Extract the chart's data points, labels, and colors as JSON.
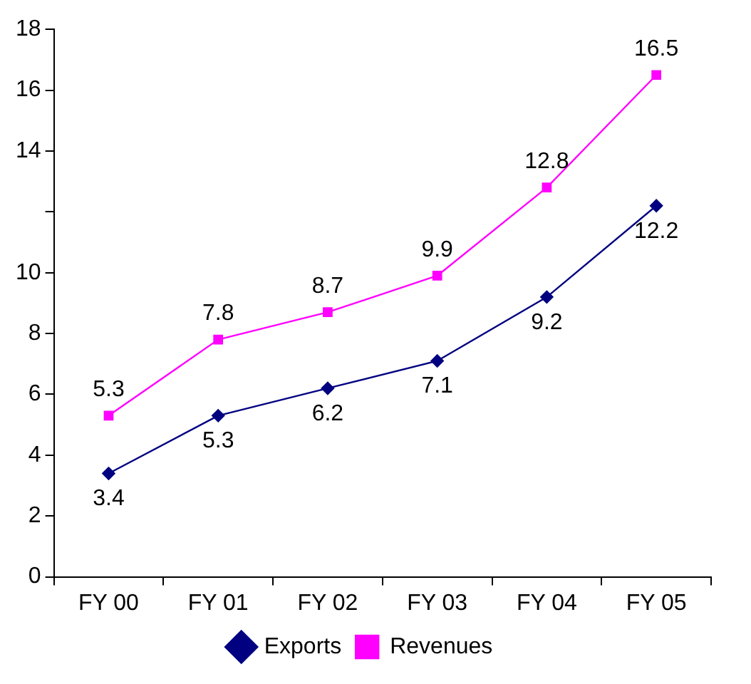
{
  "chart_data": {
    "type": "line",
    "categories": [
      "FY 00",
      "FY 01",
      "FY 02",
      "FY 03",
      "FY 04",
      "FY 05"
    ],
    "series": [
      {
        "name": "Exports",
        "color": "#000080",
        "values": [
          3.4,
          5.3,
          6.2,
          7.1,
          9.2,
          12.2
        ],
        "marker": "diamond"
      },
      {
        "name": "Revenues",
        "color": "#ff00ff",
        "values": [
          5.3,
          7.8,
          8.7,
          9.9,
          12.8,
          16.5
        ],
        "marker": "square"
      }
    ],
    "ylim": [
      0,
      18
    ],
    "yticks": [
      0,
      2,
      4,
      6,
      8,
      10,
      {
        "value": 12,
        "label": null
      },
      14,
      16,
      18
    ],
    "grid": false,
    "legend": "bottom",
    "data_labels": true,
    "line_style": "solid"
  }
}
